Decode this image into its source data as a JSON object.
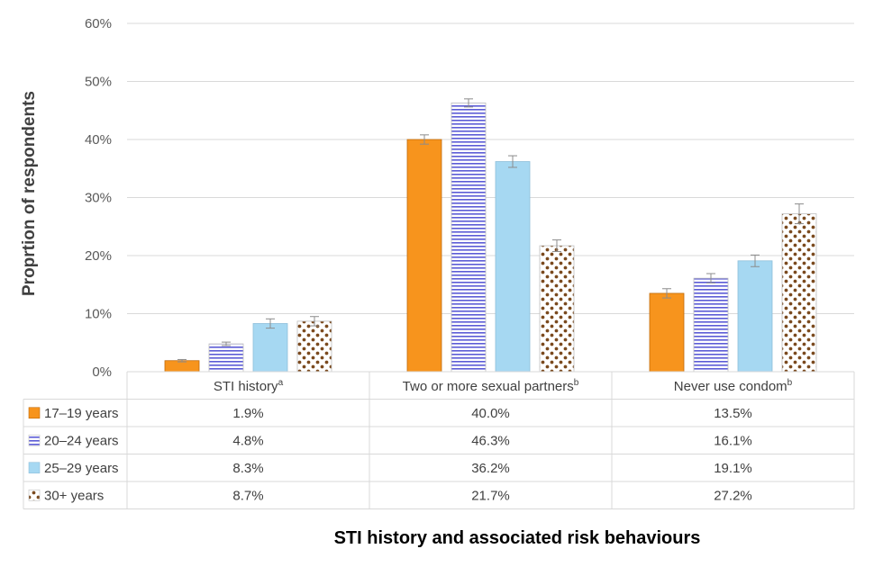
{
  "chart_data": {
    "type": "bar",
    "title": "",
    "xlabel": "STI history and associated risk behaviours",
    "ylabel": "Proprtion of respondents",
    "ylim": [
      0,
      60
    ],
    "yticks": [
      0,
      10,
      20,
      30,
      40,
      50,
      60
    ],
    "ytick_labels": [
      "0%",
      "10%",
      "20%",
      "30%",
      "40%",
      "50%",
      "60%"
    ],
    "grid": true,
    "categories": [
      {
        "label": "STI history",
        "sup": "a"
      },
      {
        "label": "Two or more sexual partners",
        "sup": "b"
      },
      {
        "label": "Never use condom",
        "sup": "b"
      }
    ],
    "series": [
      {
        "name": "17–19 years",
        "values": [
          1.9,
          40.0,
          13.5
        ],
        "errors": [
          0.2,
          0.8,
          0.8
        ],
        "labels": [
          "1.9%",
          "40.0%",
          "13.5%"
        ],
        "pattern": "solid",
        "color": "#F7941D"
      },
      {
        "name": "20–24 years",
        "values": [
          4.8,
          46.3,
          16.1
        ],
        "errors": [
          0.3,
          0.7,
          0.8
        ],
        "labels": [
          "4.8%",
          "46.3%",
          "16.1%"
        ],
        "pattern": "hstripes",
        "color": "#5B5BD6"
      },
      {
        "name": "25–29 years",
        "values": [
          8.3,
          36.2,
          19.1
        ],
        "errors": [
          0.8,
          1.0,
          1.0
        ],
        "labels": [
          "8.3%",
          "36.2%",
          "19.1%"
        ],
        "pattern": "solid",
        "color": "#A6D8F2"
      },
      {
        "name": "30+ years",
        "values": [
          8.7,
          21.7,
          27.2
        ],
        "errors": [
          0.8,
          1.0,
          1.7
        ],
        "labels": [
          "8.7%",
          "21.7%",
          "27.2%"
        ],
        "pattern": "dots",
        "color": "#7B4A1E"
      }
    ],
    "data_table": true
  }
}
